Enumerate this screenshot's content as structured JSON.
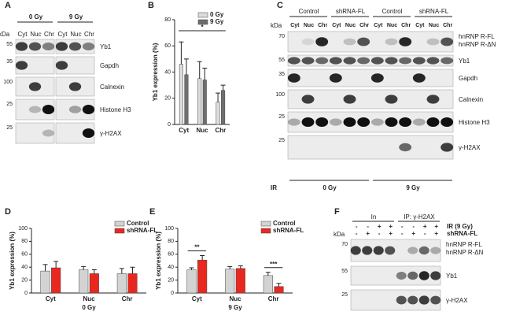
{
  "panel_labels": [
    "A",
    "B",
    "C",
    "D",
    "E",
    "F"
  ],
  "blot_a": {
    "kda_label": "kDa",
    "groups": [
      "0 Gy",
      "9 Gy"
    ],
    "lanes": [
      "Cyt",
      "Nuc",
      "Chr",
      "Cyt",
      "Nuc",
      "Chr"
    ],
    "rows": [
      {
        "kda": "55",
        "labels": [
          "Yb1"
        ]
      },
      {
        "kda": "35",
        "labels": [
          "Gapdh"
        ]
      },
      {
        "kda": "100",
        "labels": [
          "Calnexin"
        ]
      },
      {
        "kda": "25",
        "labels": [
          "Histone H3"
        ]
      },
      {
        "kda": "25",
        "labels": [
          "γ-H2AX"
        ]
      }
    ]
  },
  "blot_c": {
    "kda_label": "kDa",
    "groups": [
      "Control",
      "shRNA-FL",
      "Control",
      "shRNA-FL"
    ],
    "lanes": [
      "Cyt",
      "Nuc",
      "Chr",
      "Cyt",
      "Nuc",
      "Chr",
      "Cyt",
      "Nuc",
      "Chr",
      "Cyt",
      "Nuc",
      "Chr"
    ],
    "rows": [
      {
        "kda": "70",
        "labels": [
          "hnRNP R-FL",
          "hnRNP R-ΔN"
        ]
      },
      {
        "kda": "55",
        "labels": [
          "Yb1"
        ]
      },
      {
        "kda": "35",
        "labels": [
          "Gapdh"
        ]
      },
      {
        "kda": "100",
        "labels": [
          "Calnexin"
        ]
      },
      {
        "kda": "25",
        "labels": [
          "Histone H3"
        ]
      },
      {
        "kda": "25",
        "labels": [
          "γ-H2AX"
        ]
      }
    ],
    "ir_label": "IR",
    "ir_groups": [
      "0 Gy",
      "9 Gy"
    ]
  },
  "blot_f": {
    "kda_label": "kDa",
    "groups": [
      "In",
      "IP: γ-H2AX"
    ],
    "conditions": [
      {
        "label": "IR (9 Gy)",
        "signs": [
          "-",
          "-",
          "+",
          "+",
          "-",
          "-",
          "+",
          "+"
        ]
      },
      {
        "label": "shRNA-FL",
        "signs": [
          "-",
          "+",
          "-",
          "+",
          "-",
          "+",
          "-",
          "+"
        ]
      }
    ],
    "rows": [
      {
        "kda": "70",
        "labels": [
          "hnRNP R-FL",
          "hnRNP R-ΔN"
        ]
      },
      {
        "kda": "55",
        "labels": [
          "Yb1"
        ]
      },
      {
        "kda": "25",
        "labels": [
          "γ-H2AX"
        ]
      }
    ]
  },
  "chart_data": [
    {
      "type": "bar",
      "ylabel": "Yb1 expression (%)",
      "categories": [
        "Cyt",
        "Nuc",
        "Chr"
      ],
      "series": [
        {
          "name": "0 Gy",
          "color": "#dcdcdc",
          "values": [
            46,
            35,
            17
          ],
          "errors": [
            17,
            13,
            7
          ]
        },
        {
          "name": "9 Gy",
          "color": "#6e6e6e",
          "values": [
            38,
            34,
            26
          ],
          "errors": [
            12,
            9,
            4
          ]
        }
      ],
      "ylim": [
        0,
        80
      ],
      "yticks": [
        0,
        20,
        40,
        60,
        80
      ],
      "legend": "upper right",
      "annotations": [
        {
          "text": "*",
          "categories": [
            "Cyt",
            "Chr"
          ]
        }
      ]
    },
    {
      "type": "bar",
      "ylabel": "Yb1 expression (%)",
      "xlabel": "0 Gy",
      "categories": [
        "Cyt",
        "Nuc",
        "Chr"
      ],
      "series": [
        {
          "name": "Control",
          "color": "#d3d3d3",
          "values": [
            34,
            36,
            30
          ],
          "errors": [
            10,
            5,
            8
          ]
        },
        {
          "name": "shRNA-FL",
          "color": "#e8281e",
          "values": [
            39,
            30,
            30
          ],
          "errors": [
            10,
            6,
            10
          ]
        }
      ],
      "ylim": [
        0,
        100
      ],
      "yticks": [
        0,
        20,
        40,
        60,
        80,
        100
      ],
      "legend": "upper right",
      "annotations": []
    },
    {
      "type": "bar",
      "ylabel": "Yb1 expression (%)",
      "xlabel": "9 Gy",
      "categories": [
        "Cyt",
        "Nuc",
        "Chr"
      ],
      "series": [
        {
          "name": "Control",
          "color": "#d3d3d3",
          "values": [
            36,
            37,
            27
          ],
          "errors": [
            3,
            4,
            5
          ]
        },
        {
          "name": "shRNA-FL",
          "color": "#e8281e",
          "values": [
            51,
            38,
            10
          ],
          "errors": [
            7,
            4,
            5
          ]
        }
      ],
      "ylim": [
        0,
        100
      ],
      "yticks": [
        0,
        20,
        40,
        60,
        80,
        100
      ],
      "legend": "upper right",
      "annotations": [
        {
          "text": "**",
          "categories": [
            "Cyt"
          ]
        },
        {
          "text": "***",
          "categories": [
            "Chr"
          ]
        }
      ]
    }
  ]
}
